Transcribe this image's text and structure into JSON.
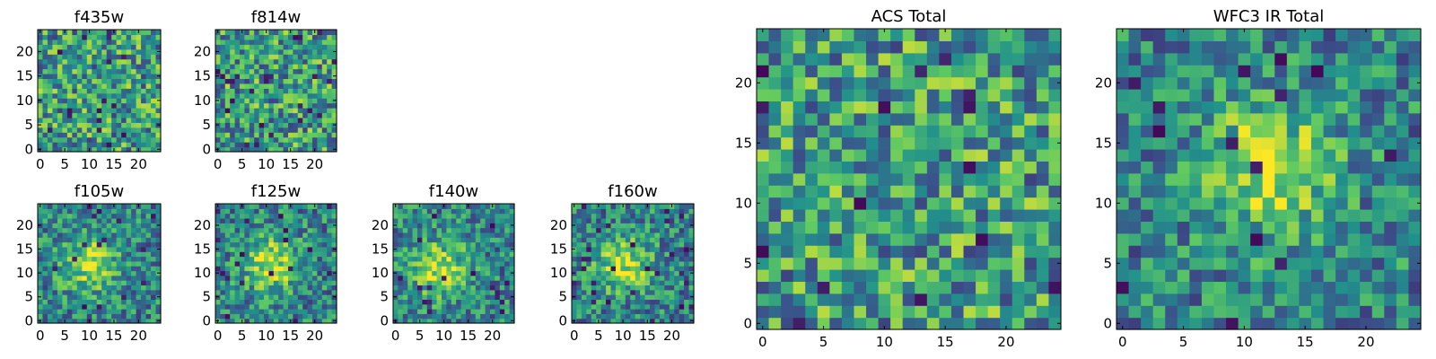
{
  "chart_data": [
    {
      "type": "heatmap",
      "title": "f435w",
      "grid_size": 25,
      "xticks": [
        0,
        5,
        10,
        15,
        20
      ],
      "yticks": [
        0,
        5,
        10,
        15,
        20
      ],
      "colormap": [
        "#440154",
        "#3b528b",
        "#21918c",
        "#5ec962",
        "#fde725"
      ],
      "pattern": "noise",
      "seed": 11
    },
    {
      "type": "heatmap",
      "title": "f814w",
      "grid_size": 25,
      "xticks": [
        0,
        5,
        10,
        15,
        20
      ],
      "yticks": [
        0,
        5,
        10,
        15,
        20
      ],
      "colormap": [
        "#440154",
        "#3b528b",
        "#21918c",
        "#5ec962",
        "#fde725"
      ],
      "pattern": "noise",
      "seed": 23
    },
    {
      "type": "heatmap",
      "title": "f105w",
      "grid_size": 25,
      "xticks": [
        0,
        5,
        10,
        15,
        20
      ],
      "yticks": [
        0,
        5,
        10,
        15,
        20
      ],
      "colormap": [
        "#440154",
        "#3b528b",
        "#21918c",
        "#5ec962",
        "#fde725"
      ],
      "pattern": "source",
      "source_center": [
        10,
        12
      ],
      "seed": 37
    },
    {
      "type": "heatmap",
      "title": "f125w",
      "grid_size": 25,
      "xticks": [
        0,
        5,
        10,
        15,
        20
      ],
      "yticks": [
        0,
        5,
        10,
        15,
        20
      ],
      "colormap": [
        "#440154",
        "#3b528b",
        "#21918c",
        "#5ec962",
        "#fde725"
      ],
      "pattern": "source",
      "source_center": [
        11,
        12
      ],
      "seed": 41
    },
    {
      "type": "heatmap",
      "title": "f140w",
      "grid_size": 25,
      "xticks": [
        0,
        5,
        10,
        15,
        20
      ],
      "yticks": [
        0,
        5,
        10,
        15,
        20
      ],
      "colormap": [
        "#440154",
        "#3b528b",
        "#21918c",
        "#5ec962",
        "#fde725"
      ],
      "pattern": "source",
      "source_center": [
        9,
        11
      ],
      "seed": 53
    },
    {
      "type": "heatmap",
      "title": "f160w",
      "grid_size": 25,
      "xticks": [
        0,
        5,
        10,
        15,
        20
      ],
      "yticks": [
        0,
        5,
        10,
        15,
        20
      ],
      "colormap": [
        "#440154",
        "#3b528b",
        "#21918c",
        "#5ec962",
        "#fde725"
      ],
      "pattern": "source",
      "source_center": [
        10,
        12
      ],
      "seed": 67
    },
    {
      "type": "heatmap",
      "title": "ACS Total",
      "grid_size": 25,
      "xticks": [
        0,
        5,
        10,
        15,
        20
      ],
      "yticks": [
        0,
        5,
        10,
        15,
        20
      ],
      "colormap": [
        "#440154",
        "#3b528b",
        "#21918c",
        "#5ec962",
        "#fde725"
      ],
      "pattern": "noise",
      "seed": 79
    },
    {
      "type": "heatmap",
      "title": "WFC3 IR Total",
      "grid_size": 25,
      "xticks": [
        0,
        5,
        10,
        15,
        20
      ],
      "yticks": [
        0,
        5,
        10,
        15,
        20
      ],
      "colormap": [
        "#440154",
        "#3b528b",
        "#21918c",
        "#5ec962",
        "#fde725"
      ],
      "pattern": "source",
      "source_center": [
        12,
        13
      ],
      "seed": 97
    }
  ]
}
